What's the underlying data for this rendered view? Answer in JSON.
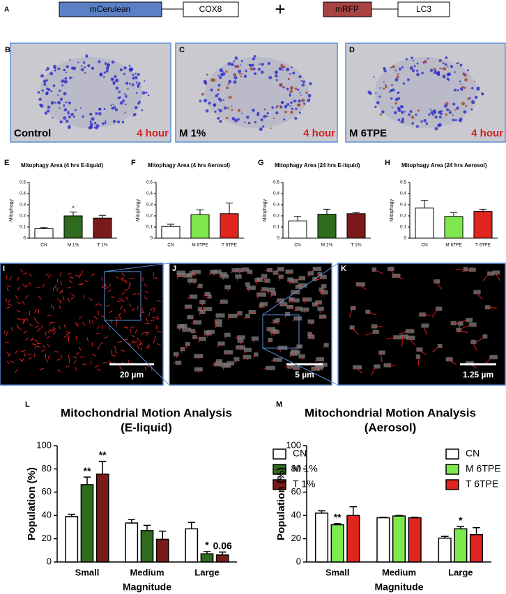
{
  "header": {
    "label": "A",
    "construct1": [
      "mCerulean",
      "COX8"
    ],
    "plus": "+",
    "construct2": [
      "mRFP",
      "LC3"
    ]
  },
  "images": [
    {
      "label": "B",
      "caption": "Control",
      "time": "4 hour"
    },
    {
      "label": "C",
      "caption": "M 1%",
      "time": "4 hour"
    },
    {
      "label": "D",
      "caption": "M 6TPE",
      "time": "4 hour"
    },
    {
      "label": "I",
      "scale_bar": "20 µm"
    },
    {
      "label": "J",
      "scale_bar": "5 µm"
    },
    {
      "label": "K",
      "scale_bar": "1.25 µm"
    }
  ],
  "chart_data": [
    {
      "type": "bar",
      "panel": "E",
      "title": "Mitophagy Area (4 hrs E-liquid)",
      "y_label": "Mitophagy",
      "categories": [
        "CN",
        "M 1%",
        "T 1%"
      ],
      "values": [
        0.085,
        0.2,
        0.18
      ],
      "errors": [
        0.01,
        0.035,
        0.025
      ],
      "colors": [
        "#ffffff",
        "#2e6b1e",
        "#7b1a1a"
      ],
      "annotations": [
        null,
        "*",
        null
      ],
      "ylim": [
        0,
        0.5
      ],
      "yticks": [
        0,
        0.1,
        0.2,
        0.3,
        0.4,
        0.5
      ]
    },
    {
      "type": "bar",
      "panel": "F",
      "title": "Mitophagy Area (4 hrs Aerosol)",
      "y_label": "Mitophagy",
      "categories": [
        "CN",
        "M 6TPE",
        "T 6TPE"
      ],
      "values": [
        0.105,
        0.21,
        0.22
      ],
      "errors": [
        0.02,
        0.045,
        0.095
      ],
      "colors": [
        "#ffffff",
        "#7fe84d",
        "#e0251f"
      ],
      "annotations": [
        null,
        null,
        null
      ],
      "ylim": [
        0,
        0.5
      ],
      "yticks": [
        0,
        0.1,
        0.2,
        0.3,
        0.4,
        0.5
      ]
    },
    {
      "type": "bar",
      "panel": "G",
      "title": "Mitophagy Area (24 hrs E-liquid)",
      "y_label": "Mitophagy",
      "categories": [
        "CN",
        "M 1%",
        "T 1%"
      ],
      "values": [
        0.155,
        0.215,
        0.22
      ],
      "errors": [
        0.04,
        0.045,
        0.01
      ],
      "colors": [
        "#ffffff",
        "#2e6b1e",
        "#7b1a1a"
      ],
      "annotations": [
        null,
        null,
        null
      ],
      "ylim": [
        0,
        0.5
      ],
      "yticks": [
        0,
        0.1,
        0.2,
        0.3,
        0.4,
        0.5
      ]
    },
    {
      "type": "bar",
      "panel": "H",
      "title": "Mitophagy Area (24 hrs Aerosol)",
      "y_label": "Mitophagy",
      "categories": [
        "CN",
        "M 6TPE",
        "T 6TPE"
      ],
      "values": [
        0.27,
        0.195,
        0.24
      ],
      "errors": [
        0.07,
        0.035,
        0.02
      ],
      "colors": [
        "#ffffff",
        "#7fe84d",
        "#e0251f"
      ],
      "annotations": [
        null,
        null,
        null
      ],
      "ylim": [
        0,
        0.5
      ],
      "yticks": [
        0,
        0.1,
        0.2,
        0.3,
        0.4,
        0.5
      ]
    },
    {
      "type": "grouped-bar",
      "panel": "L",
      "title": "Mitochondrial Motion Analysis",
      "subtitle": "(E-liquid)",
      "x_label": "Magnitude",
      "y_label": "Population (%)",
      "categories": [
        "Small",
        "Medium",
        "Large"
      ],
      "series": [
        {
          "name": "CN",
          "color": "#ffffff",
          "values": [
            39,
            33.5,
            28.5
          ],
          "errors": [
            2,
            3,
            5.5
          ],
          "annotations": [
            null,
            null,
            null
          ]
        },
        {
          "name": "M 1%",
          "color": "#2e6b1e",
          "values": [
            66.5,
            27,
            7
          ],
          "errors": [
            6.5,
            4.5,
            2
          ],
          "annotations": [
            "**",
            null,
            "*"
          ]
        },
        {
          "name": "T 1%",
          "color": "#7b1a1a",
          "values": [
            75.5,
            19.5,
            6
          ],
          "errors": [
            11,
            7,
            2.5
          ],
          "annotations": [
            "**",
            null,
            "0.06"
          ]
        }
      ],
      "ylim": [
        0,
        100
      ],
      "yticks": [
        0,
        20,
        40,
        60,
        80,
        100
      ],
      "legend": "upper right"
    },
    {
      "type": "grouped-bar",
      "panel": "M",
      "title": "Mitochondrial Motion Analysis",
      "subtitle": "(Aerosol)",
      "x_label": "Magnitude",
      "y_label": "Population (%)",
      "categories": [
        "Small",
        "Medium",
        "Large"
      ],
      "series": [
        {
          "name": "CN",
          "color": "#ffffff",
          "values": [
            42,
            38,
            20.5
          ],
          "errors": [
            2,
            0.5,
            1.5
          ],
          "annotations": [
            null,
            null,
            null
          ]
        },
        {
          "name": "M 6TPE",
          "color": "#7fe84d",
          "values": [
            32,
            39.5,
            28.5
          ],
          "errors": [
            1,
            0.5,
            2
          ],
          "annotations": [
            "**",
            null,
            "*"
          ]
        },
        {
          "name": "T 6TPE",
          "color": "#e0251f",
          "values": [
            40,
            38,
            23.5
          ],
          "errors": [
            7.5,
            0.5,
            6
          ],
          "annotations": [
            null,
            null,
            null
          ]
        }
      ],
      "ylim": [
        0,
        100
      ],
      "yticks": [
        0,
        20,
        40,
        60,
        80,
        100
      ],
      "legend": "upper right"
    }
  ]
}
